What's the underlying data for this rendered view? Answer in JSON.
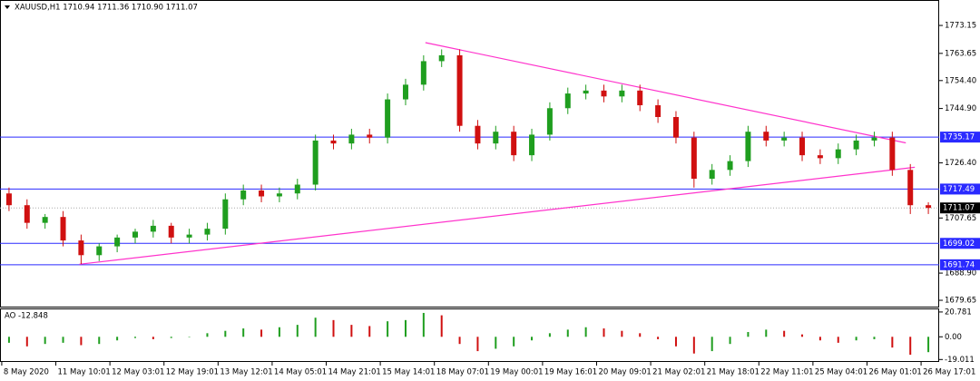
{
  "chart_data": [
    {
      "type": "candlestick",
      "title": "XAUUSD,H1  1710.94 1711.36 1710.90 1711.07",
      "xlim": [
        -0.5,
        51.6
      ],
      "ylim": [
        1677.5,
        1781.5
      ],
      "yticks": [
        1773.15,
        1763.65,
        {
          "value": 1754.4,
          "label": "1754.40"
        },
        {
          "value": 1744.9,
          "label": "1744.90"
        },
        {
          "value": 1726.4,
          "label": "1726.40"
        },
        1707.65,
        {
          "value": 1688.9,
          "label": "1688.90"
        },
        1679.65
      ],
      "categories": [
        "8 May 2020",
        "11 May 10:01",
        "12 May 03:01",
        "12 May 19:01",
        "13 May 12:01",
        "14 May 05:01",
        "14 May 21:01",
        "15 May 14:01",
        "18 May 07:01",
        "19 May 00:01",
        "19 May 16:01",
        "20 May 09:01",
        "21 May 02:01",
        "21 May 18:01",
        "22 May 11:01",
        "25 May 04:01",
        "26 May 01:01",
        "26 May 17:01"
      ],
      "up_color": "#1f9e1f",
      "down_color": "#d01010",
      "open": [
        1716,
        1712,
        1706,
        1708,
        1700,
        1695,
        1698,
        1701,
        1703,
        1705,
        1701,
        1702,
        1704,
        1714,
        1717,
        1715,
        1716,
        1719,
        1734,
        1733,
        1736,
        1735,
        1748,
        1753,
        1761,
        1763,
        1739,
        1733,
        1737,
        1729,
        1736,
        1745,
        1750,
        1751,
        1749,
        1751,
        1746,
        1742,
        1735,
        1721,
        1724,
        1727,
        1737,
        1734,
        1735,
        1729,
        1728,
        1731,
        1734,
        1735,
        1724,
        1712
      ],
      "high": [
        1718,
        1714,
        1709,
        1710,
        1702,
        1699,
        1702,
        1704,
        1707,
        1706,
        1704,
        1706,
        1716,
        1719,
        1719,
        1718,
        1721,
        1736,
        1736,
        1738,
        1738,
        1750,
        1755,
        1763,
        1765,
        1765,
        1741,
        1739,
        1739,
        1738,
        1747,
        1752,
        1753,
        1753,
        1753,
        1753,
        1748,
        1744,
        1737,
        1726,
        1729,
        1739,
        1739,
        1737,
        1737,
        1731,
        1733,
        1736,
        1737,
        1737,
        1726,
        1713
      ],
      "low": [
        1710,
        1704,
        1704,
        1698,
        1692,
        1693,
        1696,
        1699,
        1701,
        1699,
        1699,
        1700,
        1702,
        1712,
        1713,
        1713,
        1714,
        1717,
        1731,
        1731,
        1733,
        1733,
        1746,
        1751,
        1759,
        1737,
        1731,
        1731,
        1727,
        1727,
        1734,
        1743,
        1748,
        1747,
        1747,
        1744,
        1740,
        1733,
        1718,
        1719,
        1722,
        1725,
        1732,
        1732,
        1727,
        1726,
        1726,
        1729,
        1732,
        1722,
        1709,
        1709
      ],
      "close": [
        1712,
        1706,
        1708,
        1700,
        1695,
        1698,
        1701,
        1703,
        1705,
        1701,
        1702,
        1704,
        1714,
        1717,
        1715,
        1716,
        1719,
        1734,
        1733,
        1736,
        1735,
        1748,
        1753,
        1761,
        1763,
        1739,
        1733,
        1737,
        1729,
        1736,
        1745,
        1750,
        1751,
        1749,
        1751,
        1746,
        1742,
        1735,
        1721,
        1724,
        1727,
        1737,
        1734,
        1735,
        1729,
        1728,
        1731,
        1734,
        1735,
        1724,
        1712,
        1711.07
      ],
      "levels": [
        1735.17,
        1717.49,
        1699.02,
        1691.74
      ],
      "level_color": "#2a2aff",
      "current_price": 1711.07,
      "trendline_color": "#ff33cc",
      "trendlines": [
        {
          "x": [
            23.1,
            49.75
          ],
          "y": [
            1767.3,
            1733.2
          ]
        },
        {
          "x": [
            3.9,
            50.25
          ],
          "y": [
            1691.9,
            1724.9
          ]
        }
      ]
    },
    {
      "type": "histogram",
      "title": "AO -12.848",
      "ylim": [
        -20.3,
        23.0
      ],
      "yticks": [
        20.781,
        {
          "value": 0,
          "label": "0.00"
        },
        -19.011
      ],
      "up_color": "#1f9e1f",
      "down_color": "#d01010",
      "values": [
        -5,
        -8,
        -6,
        -5,
        -7,
        -6,
        -3,
        -1,
        -2,
        -1,
        0,
        3,
        5,
        7,
        6,
        8,
        10,
        16,
        14,
        10,
        9,
        13,
        14,
        20,
        18,
        -6,
        -12,
        -10,
        -8,
        -3,
        3,
        6,
        8,
        7,
        5,
        3,
        -2,
        -8,
        -14,
        -12,
        -6,
        4,
        6,
        5,
        2,
        -3,
        -5,
        -3,
        -2,
        -9,
        -15,
        -12.848
      ]
    }
  ]
}
